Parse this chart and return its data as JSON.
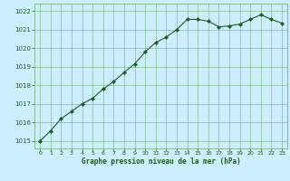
{
  "x": [
    0,
    1,
    2,
    3,
    4,
    5,
    6,
    7,
    8,
    9,
    10,
    11,
    12,
    13,
    14,
    15,
    16,
    17,
    18,
    19,
    20,
    21,
    22,
    23
  ],
  "y": [
    1015.0,
    1015.55,
    1016.2,
    1016.6,
    1017.0,
    1017.3,
    1017.8,
    1018.2,
    1018.7,
    1019.15,
    1019.8,
    1020.3,
    1020.6,
    1021.0,
    1021.55,
    1021.55,
    1021.45,
    1021.15,
    1021.2,
    1021.3,
    1021.55,
    1021.8,
    1021.55,
    1021.35
  ],
  "ylabel_ticks": [
    1015,
    1016,
    1017,
    1018,
    1019,
    1020,
    1021,
    1022
  ],
  "xlabel_ticks": [
    0,
    1,
    2,
    3,
    4,
    5,
    6,
    7,
    8,
    9,
    10,
    11,
    12,
    13,
    14,
    15,
    16,
    17,
    18,
    19,
    20,
    21,
    22,
    23
  ],
  "xlabel": "Graphe pression niveau de la mer (hPa)",
  "line_color": "#1a5c1a",
  "marker_color": "#1a5c1a",
  "plot_bg_color": "#cceeff",
  "fig_bg_color": "#cceeff",
  "grid_color": "#66aa66",
  "ylim": [
    1014.6,
    1022.4
  ],
  "xlim": [
    -0.5,
    23.5
  ]
}
